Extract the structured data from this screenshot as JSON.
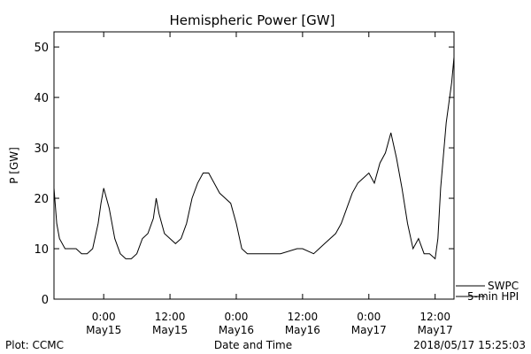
{
  "chart_data": {
    "type": "line",
    "title": "Hemispheric Power [GW]",
    "xlabel": "Date and Time",
    "ylabel": "P [GW]",
    "ylim": [
      0,
      53
    ],
    "yticks": [
      0,
      10,
      20,
      30,
      40,
      50
    ],
    "xlim": [
      "2018-05-14T15:00",
      "2018-05-17T15:25"
    ],
    "xticks": [
      {
        "t": "2018-05-15T00:00",
        "line1": "0:00",
        "line2": "May15"
      },
      {
        "t": "2018-05-15T12:00",
        "line1": "12:00",
        "line2": "May15"
      },
      {
        "t": "2018-05-16T00:00",
        "line1": "0:00",
        "line2": "May16"
      },
      {
        "t": "2018-05-16T12:00",
        "line1": "12:00",
        "line2": "May16"
      },
      {
        "t": "2018-05-17T00:00",
        "line1": "0:00",
        "line2": "May17"
      },
      {
        "t": "2018-05-17T12:00",
        "line1": "12:00",
        "line2": "May17"
      }
    ],
    "grid": false,
    "series": [
      {
        "name": "SWPC",
        "values_x": [
          "2018-05-14T15:00",
          "2018-05-14T15:30",
          "2018-05-14T16:00",
          "2018-05-14T17:00",
          "2018-05-14T18:00",
          "2018-05-14T19:00",
          "2018-05-14T20:00",
          "2018-05-14T21:00",
          "2018-05-14T22:00",
          "2018-05-14T23:00",
          "2018-05-14T23:30",
          "2018-05-15T00:00",
          "2018-05-15T01:00",
          "2018-05-15T02:00",
          "2018-05-15T03:00",
          "2018-05-15T04:00",
          "2018-05-15T05:00",
          "2018-05-15T06:00",
          "2018-05-15T07:00",
          "2018-05-15T08:00",
          "2018-05-15T09:00",
          "2018-05-15T09:30",
          "2018-05-15T10:00",
          "2018-05-15T11:00",
          "2018-05-15T12:00",
          "2018-05-15T13:00",
          "2018-05-15T14:00",
          "2018-05-15T15:00",
          "2018-05-15T16:00",
          "2018-05-15T17:00",
          "2018-05-15T18:00",
          "2018-05-15T19:00",
          "2018-05-15T20:00",
          "2018-05-15T21:00",
          "2018-05-15T22:00",
          "2018-05-15T23:00",
          "2018-05-16T00:00",
          "2018-05-16T01:00",
          "2018-05-16T02:00",
          "2018-05-16T04:00",
          "2018-05-16T08:00",
          "2018-05-16T11:00",
          "2018-05-16T12:00",
          "2018-05-16T14:00",
          "2018-05-16T15:00",
          "2018-05-16T16:00",
          "2018-05-16T18:00",
          "2018-05-16T19:00",
          "2018-05-16T20:00",
          "2018-05-16T21:00",
          "2018-05-16T22:00",
          "2018-05-16T23:00",
          "2018-05-17T00:00",
          "2018-05-17T01:00",
          "2018-05-17T02:00",
          "2018-05-17T03:00",
          "2018-05-17T04:00",
          "2018-05-17T05:00",
          "2018-05-17T06:00",
          "2018-05-17T07:00",
          "2018-05-17T08:00",
          "2018-05-17T09:00",
          "2018-05-17T10:00",
          "2018-05-17T11:00",
          "2018-05-17T12:00",
          "2018-05-17T12:30",
          "2018-05-17T13:00",
          "2018-05-17T14:00",
          "2018-05-17T15:00",
          "2018-05-17T15:25"
        ],
        "values_y": [
          22,
          15,
          12,
          10,
          10,
          10,
          9,
          9,
          10,
          15,
          19,
          22,
          18,
          12,
          9,
          8,
          8,
          9,
          12,
          13,
          16,
          20,
          17,
          13,
          12,
          11,
          12,
          15,
          20,
          23,
          25,
          25,
          23,
          21,
          20,
          19,
          15,
          10,
          9,
          9,
          9,
          10,
          10,
          9,
          10,
          11,
          13,
          15,
          18,
          21,
          23,
          24,
          25,
          23,
          27,
          29,
          33,
          28,
          22,
          15,
          10,
          12,
          9,
          9,
          8,
          12,
          22,
          35,
          43,
          48
        ]
      }
    ],
    "legend": [
      "SWPC",
      "5-min HPI"
    ],
    "legend_position": "bottom-right"
  },
  "footer": {
    "left": "Plot: CCMC",
    "right": "2018/05/17 15:25:03"
  }
}
